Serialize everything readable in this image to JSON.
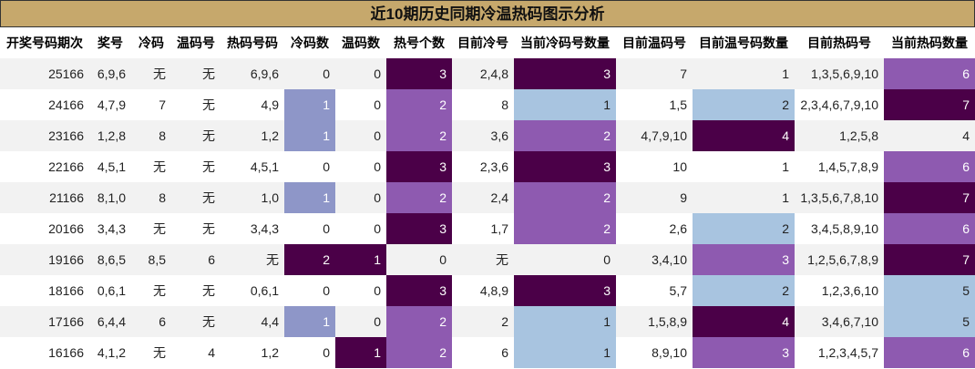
{
  "chart_data": {
    "type": "table",
    "title": "近10期历史同期冷温热码图示分析",
    "columns": [
      "开奖号码期次",
      "奖号",
      "冷码",
      "温码号",
      "热码号码",
      "冷码数",
      "温码数",
      "热号个数",
      "目前冷号",
      "当前冷码号数量",
      "目前温码号",
      "目前温号码数量",
      "目前热码号",
      "当前热码数量"
    ],
    "rows": [
      [
        "25166",
        "6,9,6",
        "无",
        "无",
        "6,9,6",
        "0",
        "0",
        "3",
        "2,4,8",
        "3",
        "7",
        "1",
        "1,3,5,6,9,10",
        "6"
      ],
      [
        "24166",
        "4,7,9",
        "7",
        "无",
        "4,9",
        "1",
        "0",
        "2",
        "8",
        "1",
        "1,5",
        "2",
        "2,3,4,6,7,9,10",
        "7"
      ],
      [
        "23166",
        "1,2,8",
        "8",
        "无",
        "1,2",
        "1",
        "0",
        "2",
        "3,6",
        "2",
        "4,7,9,10",
        "4",
        "1,2,5,8",
        "4"
      ],
      [
        "22166",
        "4,5,1",
        "无",
        "无",
        "4,5,1",
        "0",
        "0",
        "3",
        "2,3,6",
        "3",
        "10",
        "1",
        "1,4,5,7,8,9",
        "6"
      ],
      [
        "21166",
        "8,1,0",
        "8",
        "无",
        "1,0",
        "1",
        "0",
        "2",
        "2,4",
        "2",
        "9",
        "1",
        "1,3,5,6,7,8,10",
        "7"
      ],
      [
        "20166",
        "3,4,3",
        "无",
        "无",
        "3,4,3",
        "0",
        "0",
        "3",
        "1,7",
        "2",
        "2,6",
        "2",
        "3,4,5,8,9,10",
        "6"
      ],
      [
        "19166",
        "8,6,5",
        "8,5",
        "6",
        "无",
        "2",
        "1",
        "0",
        "无",
        "0",
        "3,4,10",
        "3",
        "1,2,5,6,7,8,9",
        "7"
      ],
      [
        "18166",
        "0,6,1",
        "无",
        "无",
        "0,6,1",
        "0",
        "0",
        "3",
        "4,8,9",
        "3",
        "5,7",
        "2",
        "1,2,3,6,10",
        "5"
      ],
      [
        "17166",
        "6,4,4",
        "6",
        "无",
        "4,4",
        "1",
        "0",
        "2",
        "2",
        "1",
        "1,5,8,9",
        "4",
        "3,4,6,7,10",
        "5"
      ],
      [
        "16166",
        "4,1,2",
        "无",
        "4",
        "1,2",
        "0",
        "1",
        "2",
        "6",
        "1",
        "8,9,10",
        "3",
        "1,2,3,4,5,7",
        "6"
      ]
    ],
    "cell_colors": [
      [
        null,
        null,
        null,
        null,
        null,
        null,
        null,
        "dark",
        null,
        "dark",
        null,
        null,
        null,
        "mid"
      ],
      [
        null,
        null,
        null,
        null,
        null,
        "blue",
        null,
        "mid",
        null,
        "light",
        null,
        "light",
        null,
        "dark"
      ],
      [
        null,
        null,
        null,
        null,
        null,
        "blue",
        null,
        "mid",
        null,
        "mid",
        null,
        "dark",
        null,
        null
      ],
      [
        null,
        null,
        null,
        null,
        null,
        null,
        null,
        "dark",
        null,
        "dark",
        null,
        null,
        null,
        "mid"
      ],
      [
        null,
        null,
        null,
        null,
        null,
        "blue",
        null,
        "mid",
        null,
        "mid",
        null,
        null,
        null,
        "dark"
      ],
      [
        null,
        null,
        null,
        null,
        null,
        null,
        null,
        "dark",
        null,
        "mid",
        null,
        "light",
        null,
        "mid"
      ],
      [
        null,
        null,
        null,
        null,
        null,
        "dark",
        "dark",
        null,
        null,
        null,
        null,
        "mid",
        null,
        "dark"
      ],
      [
        null,
        null,
        null,
        null,
        null,
        null,
        null,
        "dark",
        null,
        "dark",
        null,
        "light",
        null,
        "light"
      ],
      [
        null,
        null,
        null,
        null,
        null,
        "blue",
        null,
        "mid",
        null,
        "light",
        null,
        "dark",
        null,
        "light"
      ],
      [
        null,
        null,
        null,
        null,
        null,
        null,
        "dark",
        "mid",
        null,
        "light",
        null,
        "mid",
        null,
        "mid"
      ]
    ],
    "colors": {
      "title_bg": "#c6a86c",
      "light": "#a8c4e0",
      "blue": "#8e96c8",
      "mid": "#8e5ab0",
      "dark": "#4b0048"
    }
  }
}
